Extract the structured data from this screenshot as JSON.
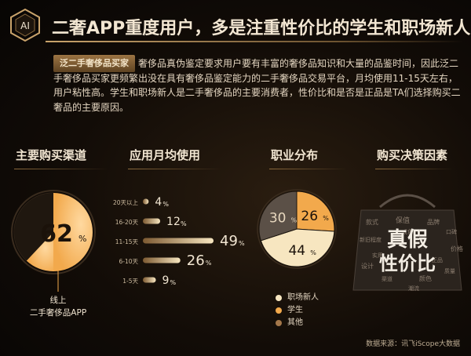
{
  "logo": {
    "text": "AI"
  },
  "title": "二奢APP重度用户，多是注重性价比的学生和职场新人",
  "intro": {
    "tag": "泛二手奢侈品买家",
    "text": "奢侈品真伪鉴定要求用户要有丰富的奢侈品知识和大量的品鉴时间，因此泛二手奢侈品买家更频繁出没在具有奢侈品鉴定能力的二手奢侈品交易平台，月均使用11-15天左右，用户粘性高。学生和职场新人是二手奢侈品的主要消费者，性价比和是否是正品是TA们选择购买二奢品的主要原因。"
  },
  "sections": {
    "channel": "主要购买渠道",
    "usage": "应用月均使用",
    "occupation": "职业分布",
    "factors": "购买决策因素"
  },
  "colors": {
    "gold": "#f2a94c",
    "cream": "#f7e6c0",
    "dark_gray": "#5b5047",
    "brown": "#a4774a"
  },
  "chart_data": [
    {
      "type": "pie",
      "title": "主要购买渠道",
      "slices": [
        {
          "label": "线上二手奢侈品APP",
          "value": 62
        },
        {
          "label": "",
          "value": 38
        }
      ],
      "center_label": "62",
      "center_unit": "%",
      "callout": [
        "线上",
        "二手奢侈品APP"
      ]
    },
    {
      "type": "bar",
      "title": "应用月均使用",
      "categories": [
        "20天以上",
        "16-20天",
        "11-15天",
        "6-10天",
        "1-5天"
      ],
      "values": [
        4,
        12,
        49,
        26,
        9
      ],
      "value_labels": [
        "4",
        "12",
        "49",
        "26",
        "9"
      ],
      "unit": "%"
    },
    {
      "type": "pie",
      "title": "职业分布",
      "slices": [
        {
          "label": "学生",
          "value": 26
        },
        {
          "label": "职场新人",
          "value": 44
        },
        {
          "label": "其他",
          "value": 30
        }
      ],
      "value_labels": [
        "26",
        "44",
        "30"
      ],
      "unit": "%",
      "legend": [
        "职场新人",
        "学生",
        "其他"
      ]
    }
  ],
  "wordcloud": {
    "major": [
      "真假",
      "性价比"
    ],
    "minor": [
      "款式",
      "保值",
      "品牌",
      "口碑",
      "新旧程度",
      "价格",
      "设计",
      "渠道",
      "颜色",
      "质量",
      "成色",
      "正品",
      "实用",
      "潮流"
    ]
  },
  "source": "数据来源：讯飞iScope大数据"
}
